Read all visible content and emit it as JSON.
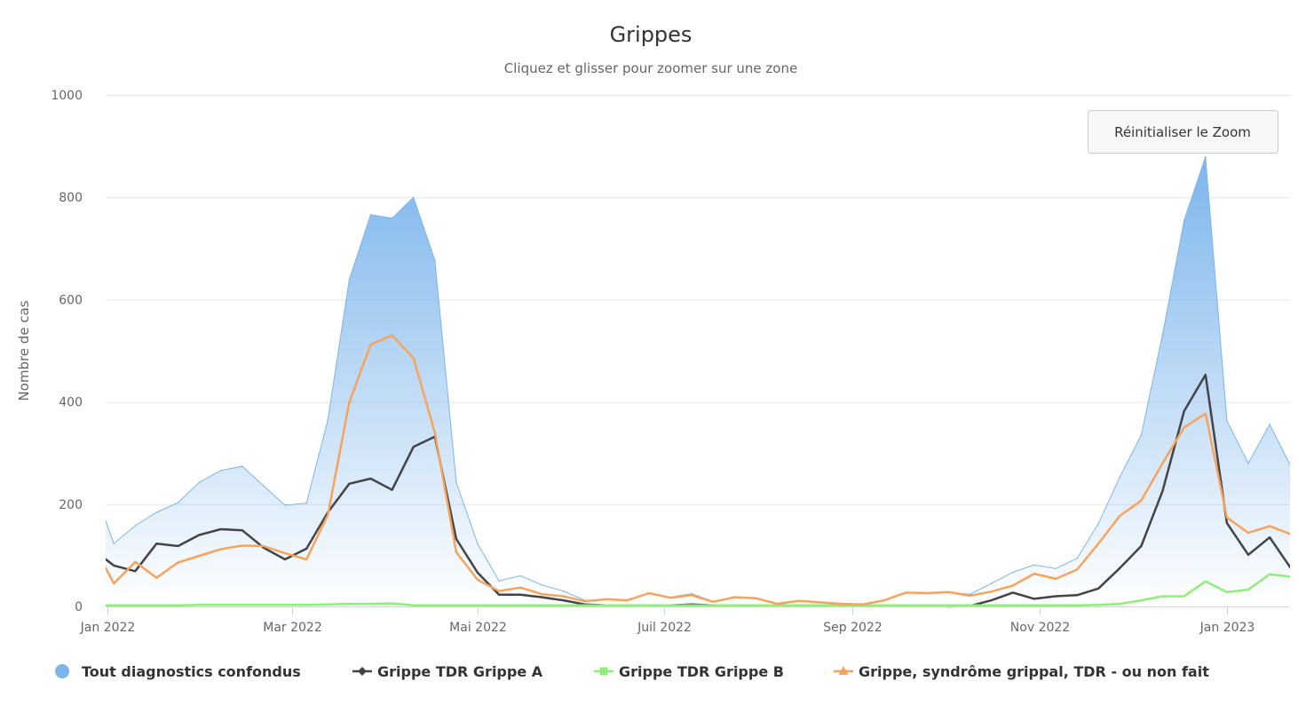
{
  "chart_data": {
    "type": "area",
    "title": "Grippes",
    "subtitle": "Cliquez et glisser pour zoomer sur une zone",
    "xlabel": "",
    "ylabel": "Nombre de cas",
    "x_unit": "week index",
    "xlim": [
      0.62,
      55.95
    ],
    "ylim": [
      0,
      1000
    ],
    "yticks": [
      0,
      200,
      400,
      600,
      800,
      1000
    ],
    "xticks": [
      {
        "label": "Jan 2022",
        "x": 0.7
      },
      {
        "label": "Mar 2022",
        "x": 9.33
      },
      {
        "label": "Mai 2022",
        "x": 18.0
      },
      {
        "label": "Juil 2022",
        "x": 26.7
      },
      {
        "label": "Sep 2022",
        "x": 35.5
      },
      {
        "label": "Nov 2022",
        "x": 44.26
      },
      {
        "label": "Jan 2023",
        "x": 53.0
      }
    ],
    "grid": true,
    "legend_position": "bottom",
    "reset_zoom_label": "Réinitialiser le Zoom",
    "series": [
      {
        "name": "Tout diagnostics confondus",
        "kind": "area",
        "color": "#7cb5ec",
        "symbol": "circle",
        "values": [
          240,
          123,
          158,
          184,
          203,
          243,
          266,
          274,
          236,
          198,
          202,
          365,
          639,
          766,
          759,
          800,
          677,
          243,
          122,
          50,
          60,
          42,
          30,
          12,
          14,
          12,
          26,
          18,
          25,
          10,
          19,
          17,
          5,
          11,
          8,
          6,
          4,
          12,
          27,
          27,
          28,
          24,
          45,
          67,
          81,
          74,
          94,
          162,
          253,
          335,
          532,
          755,
          879,
          363,
          280,
          356,
          273
        ]
      },
      {
        "name": "Grippe TDR Grippe A",
        "kind": "line",
        "color": "#434348",
        "symbol": "diamond",
        "values": [
          112,
          80,
          69,
          123,
          118,
          140,
          151,
          149,
          115,
          92,
          113,
          184,
          240,
          250,
          228,
          312,
          332,
          132,
          66,
          23,
          23,
          18,
          12,
          4,
          2,
          2,
          2,
          2,
          4,
          2,
          2,
          2,
          1,
          1,
          1,
          1,
          1,
          1,
          1,
          2,
          0,
          1,
          12,
          27,
          15,
          20,
          22,
          35,
          75,
          118,
          226,
          382,
          453,
          163,
          101,
          135,
          74
        ]
      },
      {
        "name": "Grippe TDR Grippe B",
        "kind": "line",
        "color": "#90ed7d",
        "symbol": "square",
        "values": [
          2,
          2,
          2,
          2,
          2,
          3,
          3,
          3,
          3,
          3,
          3,
          4,
          5,
          5,
          6,
          2,
          2,
          2,
          2,
          2,
          2,
          2,
          2,
          2,
          2,
          2,
          2,
          2,
          2,
          2,
          2,
          2,
          2,
          2,
          2,
          2,
          2,
          2,
          2,
          2,
          2,
          2,
          2,
          2,
          2,
          2,
          2,
          3,
          5,
          12,
          20,
          20,
          49,
          28,
          33,
          63,
          58
        ]
      },
      {
        "name": "Grippe, syndrôme grippal, TDR - ou non fait",
        "kind": "line",
        "color": "#f7a35c",
        "symbol": "triangle",
        "values": [
          124,
          45,
          87,
          56,
          86,
          99,
          112,
          119,
          118,
          104,
          92,
          179,
          399,
          512,
          530,
          486,
          340,
          106,
          52,
          30,
          37,
          24,
          20,
          10,
          14,
          12,
          26,
          17,
          22,
          9,
          18,
          16,
          5,
          11,
          8,
          5,
          4,
          12,
          27,
          26,
          28,
          21,
          29,
          41,
          64,
          54,
          72,
          123,
          177,
          207,
          280,
          350,
          377,
          174,
          144,
          157,
          141
        ]
      }
    ]
  }
}
